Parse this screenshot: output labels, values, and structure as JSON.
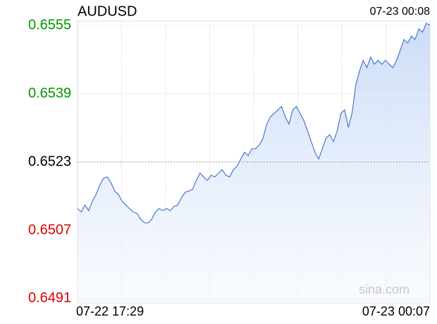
{
  "chart_data": {
    "type": "line",
    "title": "AUDUSD",
    "timestamp": "07-23 00:08",
    "watermark": "sina.com",
    "x_start_label": "07-22 17:29",
    "x_end_label": "07-23 00:07",
    "reference": 0.6523,
    "up_color": "#009900",
    "down_color": "#dd0000",
    "color": "#4a78c8",
    "ylim": [
      0.649,
      0.6556
    ],
    "yticks": [
      {
        "value": 0.6555,
        "label": "0.6555"
      },
      {
        "value": 0.6539,
        "label": "0.6539"
      },
      {
        "value": 0.6523,
        "label": "0.6523"
      },
      {
        "value": 0.6507,
        "label": "0.6507"
      },
      {
        "value": 0.6491,
        "label": "0.6491"
      }
    ],
    "values": [
      0.65121,
      0.65113,
      0.65129,
      0.65116,
      0.65138,
      0.65154,
      0.65176,
      0.65192,
      0.65195,
      0.65182,
      0.65162,
      0.65154,
      0.65138,
      0.65129,
      0.65121,
      0.65113,
      0.6511,
      0.65096,
      0.65088,
      0.65087,
      0.65096,
      0.65113,
      0.65121,
      0.65116,
      0.65121,
      0.65116,
      0.65126,
      0.65129,
      0.65146,
      0.65159,
      0.65162,
      0.65166,
      0.65187,
      0.65204,
      0.65195,
      0.65187,
      0.65199,
      0.65195,
      0.65204,
      0.65212,
      0.65199,
      0.65195,
      0.65212,
      0.6522,
      0.65237,
      0.65253,
      0.65245,
      0.65261,
      0.65261,
      0.6527,
      0.65286,
      0.65319,
      0.65336,
      0.65344,
      0.65352,
      0.6536,
      0.65336,
      0.65319,
      0.65352,
      0.6536,
      0.65344,
      0.65327,
      0.65303,
      0.65278,
      0.65253,
      0.65237,
      0.65261,
      0.65286,
      0.65294,
      0.65278,
      0.65303,
      0.65344,
      0.65352,
      0.65311,
      0.65344,
      0.6541,
      0.65443,
      0.65468,
      0.65451,
      0.65476,
      0.65459,
      0.65468,
      0.65459,
      0.65468,
      0.65459,
      0.65451,
      0.65468,
      0.65492,
      0.65517,
      0.65509,
      0.65525,
      0.65517,
      0.65542,
      0.65534,
      0.65555,
      0.6555
    ]
  }
}
